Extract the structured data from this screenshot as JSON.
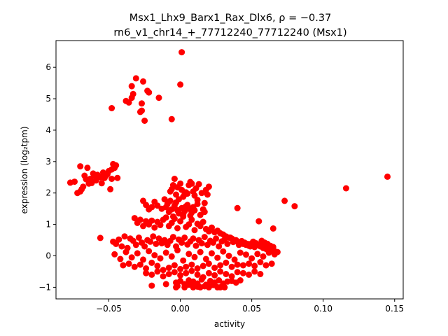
{
  "chart_data": {
    "type": "scatter",
    "title_line1": "Msx1_Lhx9_Barx1_Rax_Dlx6, ρ = −0.37",
    "title_line2": "rn6_v1_chr14_+_77712240_77712240 (Msx1)",
    "xlabel": "activity",
    "ylabel": "expression (log₂tpm)",
    "xlim": [
      -0.087,
      0.156
    ],
    "ylim": [
      -1.37,
      6.85
    ],
    "x_ticks": [
      -0.05,
      0.0,
      0.05,
      0.1,
      0.15
    ],
    "x_tick_labels": [
      "−0.05",
      "0.00",
      "0.05",
      "0.10",
      "0.15"
    ],
    "y_ticks": [
      -1,
      0,
      1,
      2,
      3,
      4,
      5,
      6
    ],
    "y_tick_labels": [
      "−1",
      "0",
      "1",
      "2",
      "3",
      "4",
      "5",
      "6"
    ],
    "grid": false,
    "marker_color": "#ff0000",
    "x": [
      0.001,
      0.0,
      -0.006,
      -0.048,
      -0.034,
      -0.033,
      -0.031,
      -0.028,
      -0.027,
      -0.026,
      -0.025,
      -0.023,
      -0.022,
      -0.036,
      -0.038,
      -0.034,
      -0.015,
      -0.027,
      -0.077,
      -0.074,
      -0.072,
      -0.07,
      -0.07,
      -0.069,
      -0.068,
      -0.066,
      -0.065,
      -0.063,
      -0.062,
      -0.061,
      -0.06,
      -0.059,
      -0.058,
      -0.057,
      -0.056,
      -0.055,
      -0.054,
      -0.053,
      -0.052,
      -0.051,
      -0.05,
      -0.049,
      -0.048,
      -0.047,
      -0.046,
      -0.045,
      -0.044,
      -0.048,
      -0.056,
      -0.064,
      -0.067,
      0.145,
      0.116,
      0.073,
      0.08,
      0.04,
      0.055,
      0.065,
      -0.007,
      -0.006,
      -0.005,
      -0.004,
      -0.003,
      -0.002,
      -0.001,
      0.0,
      0.001,
      0.002,
      0.003,
      0.004,
      0.005,
      0.006,
      0.007,
      0.008,
      0.009,
      0.01,
      0.011,
      0.012,
      0.013,
      0.015,
      0.017,
      0.018,
      0.019,
      0.02,
      -0.011,
      -0.01,
      -0.009,
      -0.008,
      -0.007,
      -0.006,
      -0.005,
      -0.004,
      -0.003,
      -0.002,
      -0.001,
      0.001,
      0.002,
      0.003,
      0.004,
      0.005,
      0.006,
      0.007,
      0.008,
      0.009,
      0.01,
      0.012,
      0.014,
      0.016,
      0.017,
      -0.013,
      -0.016,
      -0.018,
      -0.02,
      -0.022,
      -0.024,
      -0.026,
      -0.032,
      -0.03,
      -0.028,
      -0.026,
      -0.024,
      -0.022,
      -0.02,
      -0.018,
      -0.016,
      -0.014,
      -0.012,
      -0.01,
      -0.008,
      -0.006,
      -0.004,
      -0.002,
      0.0,
      0.002,
      0.004,
      0.006,
      0.008,
      0.01,
      0.012,
      0.014,
      0.016,
      0.018,
      0.02,
      0.022,
      0.024,
      0.026,
      0.028,
      0.03,
      0.032,
      0.034,
      0.036,
      0.038,
      0.04,
      0.042,
      0.044,
      0.046,
      0.048,
      0.05,
      0.052,
      0.054,
      0.056,
      0.058,
      0.06,
      0.062,
      0.064,
      0.066,
      0.068,
      -0.047,
      -0.045,
      -0.043,
      -0.041,
      -0.039,
      -0.037,
      -0.035,
      -0.033,
      -0.031,
      -0.029,
      -0.027,
      -0.025,
      -0.023,
      -0.021,
      -0.019,
      -0.017,
      -0.015,
      -0.013,
      -0.011,
      -0.009,
      -0.007,
      -0.005,
      -0.003,
      -0.001,
      0.001,
      0.003,
      0.005,
      0.007,
      0.009,
      0.011,
      0.013,
      0.015,
      0.017,
      0.019,
      0.021,
      0.023,
      0.025,
      0.027,
      0.029,
      0.031,
      0.033,
      0.035,
      0.037,
      0.039,
      0.041,
      0.043,
      0.045,
      0.047,
      0.049,
      0.051,
      0.053,
      0.055,
      0.057,
      0.059,
      0.061,
      0.063,
      0.065,
      -0.046,
      -0.042,
      -0.038,
      -0.034,
      -0.03,
      -0.026,
      -0.022,
      -0.018,
      -0.014,
      -0.01,
      -0.006,
      -0.002,
      0.002,
      0.006,
      0.01,
      0.014,
      0.018,
      0.022,
      0.026,
      0.03,
      0.034,
      0.038,
      0.042,
      0.046,
      0.05,
      0.054,
      0.058,
      0.062,
      0.066,
      -0.04,
      -0.036,
      -0.032,
      -0.028,
      -0.024,
      -0.02,
      -0.016,
      -0.012,
      -0.008,
      -0.004,
      0.0,
      0.004,
      0.008,
      0.012,
      0.016,
      0.02,
      0.024,
      0.028,
      0.032,
      0.036,
      0.04,
      0.044,
      0.048,
      0.052,
      0.056,
      0.06,
      0.064,
      -0.024,
      -0.02,
      -0.016,
      -0.012,
      -0.008,
      -0.004,
      0.0,
      0.004,
      0.008,
      0.012,
      0.016,
      0.02,
      0.024,
      0.028,
      0.032,
      0.036,
      0.04,
      0.044,
      0.048,
      0.052,
      0.056,
      -0.003,
      0.0,
      0.003,
      0.006,
      0.009,
      0.012,
      0.015,
      0.018,
      0.021,
      0.024,
      0.027,
      0.03,
      0.033,
      0.036,
      0.039,
      0.042,
      0.003,
      0.009,
      0.014,
      0.02,
      -0.003,
      0.028,
      0.031,
      0.019,
      0.012,
      0.006,
      -0.002,
      -0.01,
      -0.02,
      0.023,
      0.017,
      0.026
    ],
    "y": [
      6.48,
      5.45,
      4.35,
      4.7,
      5.4,
      5.15,
      5.65,
      4.58,
      4.62,
      5.55,
      4.3,
      5.25,
      5.2,
      4.88,
      4.93,
      5.03,
      5.03,
      4.85,
      2.33,
      2.36,
      2.0,
      2.05,
      2.85,
      2.12,
      2.2,
      2.44,
      2.8,
      2.45,
      2.32,
      2.62,
      2.55,
      2.4,
      2.58,
      2.52,
      2.5,
      2.31,
      2.65,
      2.48,
      2.55,
      2.6,
      2.7,
      2.12,
      2.45,
      2.92,
      2.8,
      2.88,
      2.48,
      2.75,
      0.57,
      2.3,
      2.55,
      2.52,
      2.15,
      1.75,
      1.58,
      1.52,
      1.1,
      0.87,
      2.05,
      2.12,
      2.25,
      2.45,
      1.95,
      2.18,
      1.8,
      2.3,
      2.1,
      1.88,
      1.95,
      2.02,
      1.98,
      2.25,
      2.35,
      2.3,
      2.05,
      1.92,
      2.15,
      1.78,
      2.28,
      2.0,
      1.68,
      2.1,
      1.95,
      2.2,
      1.8,
      1.55,
      1.65,
      1.4,
      1.75,
      1.48,
      1.25,
      1.6,
      1.7,
      1.45,
      1.35,
      1.52,
      1.3,
      1.42,
      1.58,
      1.62,
      1.5,
      1.28,
      1.38,
      1.55,
      1.45,
      1.65,
      1.3,
      1.48,
      1.4,
      1.5,
      1.6,
      1.72,
      1.55,
      1.48,
      1.62,
      1.75,
      1.2,
      1.05,
      1.15,
      0.95,
      1.1,
      1.0,
      1.12,
      0.9,
      1.08,
      0.98,
      1.15,
      1.22,
      0.95,
      1.05,
      1.18,
      0.88,
      1.1,
      1.25,
      0.92,
      1.0,
      1.15,
      0.82,
      1.02,
      0.95,
      1.08,
      0.85,
      0.78,
      0.9,
      0.75,
      0.8,
      0.72,
      0.68,
      0.62,
      0.58,
      0.55,
      0.5,
      0.45,
      0.42,
      0.38,
      0.35,
      0.32,
      0.4,
      0.28,
      0.35,
      0.3,
      0.25,
      0.22,
      0.2,
      0.18,
      0.15,
      0.12,
      0.45,
      0.38,
      0.52,
      0.3,
      0.62,
      0.25,
      0.55,
      0.48,
      0.35,
      0.58,
      0.42,
      0.3,
      0.5,
      0.45,
      0.62,
      0.38,
      0.55,
      0.4,
      0.5,
      0.35,
      0.48,
      0.6,
      0.3,
      0.52,
      0.42,
      0.58,
      0.36,
      0.46,
      0.55,
      0.32,
      0.5,
      0.4,
      0.6,
      0.35,
      0.48,
      0.42,
      0.55,
      0.3,
      0.46,
      0.52,
      0.38,
      0.58,
      0.44,
      0.5,
      0.35,
      0.47,
      0.42,
      0.38,
      0.3,
      0.45,
      0.4,
      0.35,
      0.48,
      0.42,
      0.38,
      0.32,
      0.28,
      0.05,
      -0.1,
      0.12,
      -0.05,
      0.08,
      -0.12,
      0.15,
      0.02,
      -0.08,
      0.1,
      -0.02,
      0.18,
      -0.15,
      0.06,
      -0.04,
      0.12,
      -0.1,
      0.08,
      -0.06,
      0.14,
      0.0,
      -0.12,
      0.1,
      0.04,
      -0.08,
      0.06,
      -0.02,
      0.1,
      0.05,
      -0.3,
      -0.25,
      -0.35,
      -0.28,
      -0.4,
      -0.22,
      -0.32,
      -0.45,
      -0.38,
      -0.3,
      -0.42,
      -0.35,
      -0.28,
      -0.4,
      -0.32,
      -0.25,
      -0.38,
      -0.3,
      -0.22,
      -0.35,
      -0.28,
      -0.3,
      -0.25,
      -0.32,
      -0.2,
      -0.3,
      -0.25,
      -0.55,
      -0.6,
      -0.5,
      -0.65,
      -0.58,
      -0.52,
      -0.62,
      -0.55,
      -0.48,
      -0.6,
      -0.68,
      -0.55,
      -0.62,
      -0.5,
      -0.58,
      -0.65,
      -0.52,
      -0.55,
      -0.6,
      -0.5,
      -0.58,
      -0.85,
      -0.8,
      -0.9,
      -0.78,
      -0.82,
      -0.88,
      -0.75,
      -0.92,
      -0.8,
      -0.85,
      -0.78,
      -0.88,
      -0.82,
      -0.8,
      -0.85,
      -0.78,
      -1.0,
      -1.0,
      -1.0,
      -1.0,
      -1.0,
      -1.0,
      -1.0,
      -0.95,
      -0.98,
      -0.92,
      -0.96,
      -0.9,
      -0.95,
      -0.93,
      -0.97,
      -1.0
    ]
  }
}
